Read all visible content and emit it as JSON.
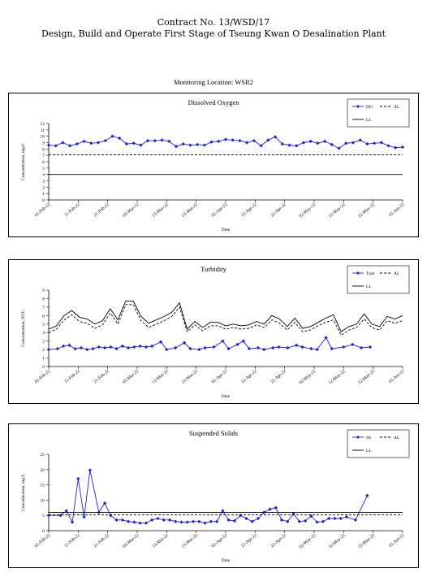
{
  "header": {
    "contract": "Contract No. 13/WSD/17",
    "project": "Design, Build and Operate First Stage of Tseung Kwan O Desalination Plant",
    "location": "Monitoring Location: WSR2"
  },
  "chart_data": [
    {
      "type": "line",
      "title": "Dissolved Oxygen",
      "xlabel": "Date",
      "ylabel": "Concentration, mg/L",
      "ylim": [
        0,
        12
      ],
      "yticks": [
        0,
        1,
        2,
        3,
        4,
        5,
        6,
        7,
        8,
        9,
        10,
        11,
        12
      ],
      "xtick_labels": [
        "01-Feb-22",
        "11-Feb-22",
        "21-Feb-22",
        "03-Mar-22",
        "13-Mar-22",
        "23-Mar-22",
        "02-Apr-22",
        "12-Apr-22",
        "22-Apr-22",
        "02-May-22",
        "12-May-22",
        "22-May-22",
        "01-Jun-22"
      ],
      "legend_position": "top-right",
      "series": [
        {
          "name": "DO",
          "style": "marker",
          "values": [
            8.6,
            8.5,
            9.0,
            8.5,
            8.8,
            9.2,
            8.9,
            9.0,
            9.3,
            10.0,
            9.7,
            8.8,
            8.9,
            8.6,
            9.3,
            9.3,
            9.4,
            9.2,
            8.4,
            8.8,
            8.6,
            8.7,
            8.6,
            9.1,
            9.2,
            9.5,
            9.4,
            9.3,
            9.0,
            9.3,
            8.5,
            9.4,
            9.9,
            8.8,
            8.6,
            8.5,
            9.0,
            9.2,
            8.9,
            9.2,
            8.7,
            8.1,
            8.9,
            9.0,
            9.4,
            8.8,
            8.9,
            9.0,
            8.5,
            8.2,
            8.3
          ]
        },
        {
          "name": "AL",
          "style": "dashed",
          "values": [
            7.1,
            7.1
          ]
        },
        {
          "name": "LL",
          "style": "solid",
          "values": [
            4.0,
            4.0
          ]
        }
      ]
    },
    {
      "type": "line",
      "title": "Turbidity",
      "xlabel": "Date",
      "ylabel": "Concentration, NTU",
      "ylim": [
        0,
        9
      ],
      "yticks": [
        0,
        1,
        2,
        3,
        4,
        5,
        6,
        7,
        8,
        9
      ],
      "xtick_labels": [
        "01-Feb-22",
        "11-Feb-22",
        "21-Feb-22",
        "03-Mar-22",
        "13-Mar-22",
        "23-Mar-22",
        "02-Apr-22",
        "12-Apr-22",
        "22-Apr-22",
        "02-May-22",
        "12-May-22",
        "22-May-22",
        "01-Jun-22"
      ],
      "legend_position": "top-right",
      "series": [
        {
          "name": "Turb",
          "style": "marker",
          "values": [
            2.0,
            2.1,
            2.4,
            2.5,
            2.1,
            2.2,
            2.0,
            2.1,
            2.3,
            2.2,
            2.3,
            2.1,
            2.4,
            2.2,
            2.3,
            2.4,
            2.3,
            2.4,
            2.9,
            2.0,
            2.2,
            2.8,
            2.1,
            2.0,
            2.2,
            2.3,
            3.0,
            2.1,
            2.6,
            3.0,
            2.1,
            2.2,
            2.0,
            2.2,
            2.3,
            2.2,
            2.5,
            2.3,
            2.1,
            2.0,
            3.4,
            2.1,
            2.3,
            2.6,
            2.2,
            2.3
          ],
          "x_index": [
            0,
            3,
            5,
            7,
            9,
            11,
            13,
            15,
            17,
            19,
            21,
            23,
            25,
            27,
            29,
            31,
            33,
            35,
            38,
            40,
            43,
            46,
            48,
            51,
            53,
            56,
            59,
            61,
            64,
            66,
            68,
            71,
            73,
            76,
            78,
            81,
            84,
            86,
            89,
            91,
            94,
            96,
            100,
            103,
            106,
            109
          ]
        },
        {
          "name": "AL",
          "style": "dashed",
          "values": [
            4.0,
            4.4,
            5.5,
            6.1,
            5.3,
            5.1,
            4.5,
            4.9,
            6.3,
            5.0,
            7.3,
            7.3,
            5.4,
            4.6,
            5.0,
            5.4,
            5.9,
            7.0,
            4.1,
            4.9,
            4.2,
            4.8,
            4.8,
            4.4,
            4.6,
            4.4,
            4.5,
            4.9,
            4.6,
            5.5,
            5.1,
            4.3,
            5.2,
            4.1,
            4.3,
            4.8,
            5.2,
            5.5,
            3.7,
            4.3,
            4.6,
            5.6,
            4.6,
            4.3,
            5.4,
            5.1,
            5.4
          ]
        },
        {
          "name": "LL",
          "style": "solid",
          "values": [
            4.4,
            4.8,
            6.0,
            6.6,
            5.8,
            5.6,
            5.0,
            5.4,
            6.8,
            5.5,
            7.7,
            7.7,
            5.9,
            5.1,
            5.5,
            5.9,
            6.4,
            7.5,
            4.4,
            5.3,
            4.6,
            5.2,
            5.2,
            4.8,
            5.0,
            4.8,
            4.9,
            5.3,
            5.0,
            6.0,
            5.6,
            4.7,
            5.7,
            4.5,
            4.7,
            5.2,
            5.7,
            6.1,
            4.1,
            4.7,
            5.0,
            6.2,
            5.0,
            4.7,
            5.9,
            5.6,
            6.0
          ]
        }
      ]
    },
    {
      "type": "line",
      "title": "Suspended Solids",
      "xlabel": "Date",
      "ylabel": "Concentration, mg/L",
      "ylim": [
        0,
        25
      ],
      "yticks": [
        0,
        5,
        10,
        15,
        20,
        25
      ],
      "xtick_labels": [
        "01-Feb-22",
        "11-Feb-22",
        "21-Feb-22",
        "03-Mar-22",
        "13-Mar-22",
        "23-Mar-22",
        "02-Apr-22",
        "12-Apr-22",
        "22-Apr-22",
        "02-May-22",
        "12-May-22",
        "22-May-22",
        "01-Jun-22"
      ],
      "legend_position": "top-right",
      "series": [
        {
          "name": "SS",
          "style": "marker",
          "values": [
            5.0,
            5.0,
            6.5,
            2.8,
            17.0,
            4.5,
            19.8,
            6.0,
            9.0,
            5.0,
            3.5,
            3.5,
            3.0,
            2.8,
            2.5,
            2.5,
            3.5,
            4.0,
            3.5,
            3.5,
            3.0,
            2.8,
            2.8,
            3.0,
            3.0,
            2.5,
            3.0,
            3.0,
            6.5,
            3.5,
            3.2,
            5.0,
            4.0,
            3.0,
            4.0,
            6.0,
            7.0,
            7.5,
            3.5,
            3.0,
            5.5,
            3.0,
            3.2,
            4.8,
            2.8,
            3.0,
            4.0,
            4.0,
            4.0,
            4.5,
            3.5,
            11.5
          ],
          "x_index": [
            0,
            4,
            6,
            8,
            10,
            12,
            14,
            17,
            19,
            21,
            23,
            25,
            27,
            29,
            31,
            33,
            35,
            37,
            39,
            41,
            43,
            45,
            47,
            49,
            51,
            53,
            55,
            57,
            59,
            61,
            63,
            65,
            67,
            69,
            71,
            73,
            75,
            77,
            79,
            81,
            83,
            85,
            87,
            89,
            91,
            93,
            95,
            97,
            99,
            101,
            104,
            108
          ]
        },
        {
          "name": "AL",
          "style": "dashed",
          "values": [
            5.2,
            5.2
          ]
        },
        {
          "name": "LL",
          "style": "solid",
          "values": [
            6.0,
            6.0
          ]
        }
      ]
    }
  ]
}
